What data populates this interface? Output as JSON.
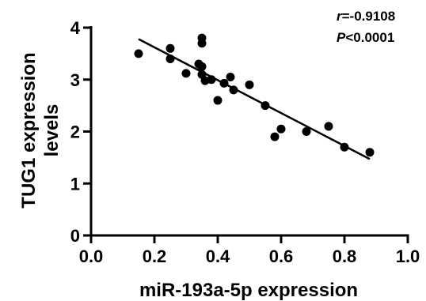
{
  "chart_data": {
    "type": "scatter",
    "xlabel": "miR-193a-5p expression",
    "ylabel_lines": [
      "TUG1 expression",
      "levels"
    ],
    "xlim": [
      0.0,
      1.0
    ],
    "ylim": [
      0,
      4
    ],
    "x_ticks": [
      "0.0",
      "0.2",
      "0.4",
      "0.6",
      "0.8",
      "1.0"
    ],
    "y_ticks": [
      "0",
      "1",
      "2",
      "3",
      "4"
    ],
    "grid": false,
    "points": [
      {
        "x": 0.15,
        "y": 3.5
      },
      {
        "x": 0.25,
        "y": 3.6
      },
      {
        "x": 0.25,
        "y": 3.4
      },
      {
        "x": 0.3,
        "y": 3.12
      },
      {
        "x": 0.34,
        "y": 3.3
      },
      {
        "x": 0.35,
        "y": 3.8
      },
      {
        "x": 0.35,
        "y": 3.7
      },
      {
        "x": 0.35,
        "y": 3.25
      },
      {
        "x": 0.35,
        "y": 3.1
      },
      {
        "x": 0.36,
        "y": 2.98
      },
      {
        "x": 0.38,
        "y": 3.0
      },
      {
        "x": 0.4,
        "y": 2.6
      },
      {
        "x": 0.42,
        "y": 2.93
      },
      {
        "x": 0.44,
        "y": 3.05
      },
      {
        "x": 0.45,
        "y": 2.8
      },
      {
        "x": 0.5,
        "y": 2.9
      },
      {
        "x": 0.55,
        "y": 2.5
      },
      {
        "x": 0.58,
        "y": 1.9
      },
      {
        "x": 0.6,
        "y": 2.05
      },
      {
        "x": 0.68,
        "y": 2.0
      },
      {
        "x": 0.75,
        "y": 2.1
      },
      {
        "x": 0.8,
        "y": 1.7
      },
      {
        "x": 0.88,
        "y": 1.6
      }
    ],
    "regression_line": {
      "x": [
        0.15,
        0.88
      ],
      "y": [
        3.78,
        1.47
      ]
    },
    "annotation": {
      "r_symbol": "r",
      "r_value": "=-0.9108",
      "p_symbol": "P",
      "p_value": "<0.0001"
    },
    "colors": {
      "points": "#000000",
      "line": "#000000",
      "axes": "#000000"
    }
  }
}
